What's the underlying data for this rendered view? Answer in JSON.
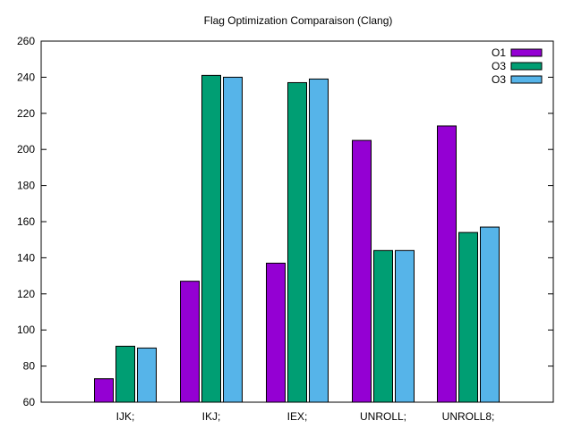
{
  "chart_data": {
    "type": "bar",
    "title": "Flag Optimization Comparaison (Clang)",
    "xlabel": "",
    "ylabel": "",
    "ylim": [
      60,
      260
    ],
    "yticks": [
      60,
      80,
      100,
      120,
      140,
      160,
      180,
      200,
      220,
      240,
      260
    ],
    "grid": false,
    "legend_position": "top-right",
    "categories": [
      "IJK;",
      "IKJ;",
      "IEX;",
      "UNROLL;",
      "UNROLL8;"
    ],
    "series": [
      {
        "name": "O1",
        "color": "#9400d3",
        "values": [
          73,
          127,
          137,
          205,
          213
        ]
      },
      {
        "name": "O3",
        "color": "#009e73",
        "values": [
          91,
          241,
          237,
          144,
          154
        ]
      },
      {
        "name": "O3",
        "color": "#56b4e9",
        "values": [
          90,
          240,
          239,
          144,
          157
        ]
      }
    ]
  }
}
